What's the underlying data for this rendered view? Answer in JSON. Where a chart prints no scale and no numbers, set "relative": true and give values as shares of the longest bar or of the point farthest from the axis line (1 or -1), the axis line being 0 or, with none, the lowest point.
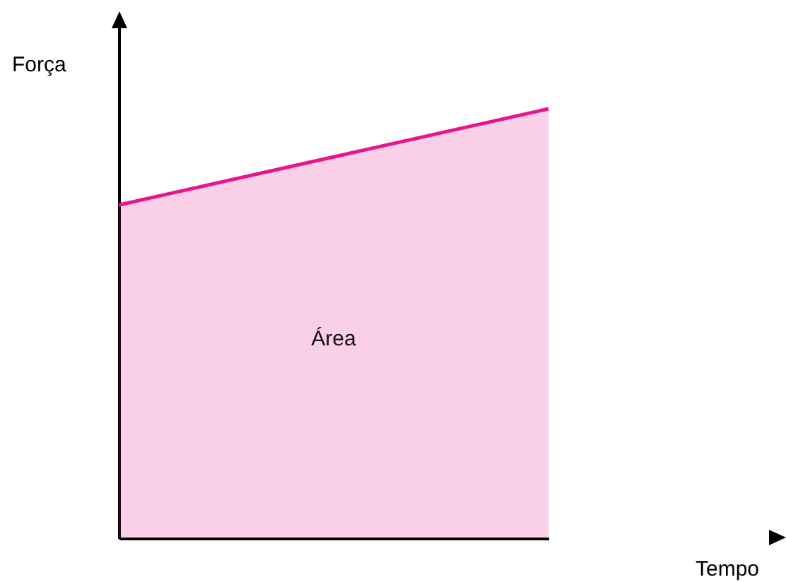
{
  "chart_data": {
    "type": "area",
    "relative": true,
    "xlabel": "Tempo",
    "ylabel": "Força",
    "categories": [
      null,
      null
    ],
    "tick_labels": false,
    "series": [
      {
        "color": "#e8158c",
        "values": [
          0.776,
          1
        ]
      }
    ],
    "annotations": [
      "Área"
    ]
  }
}
